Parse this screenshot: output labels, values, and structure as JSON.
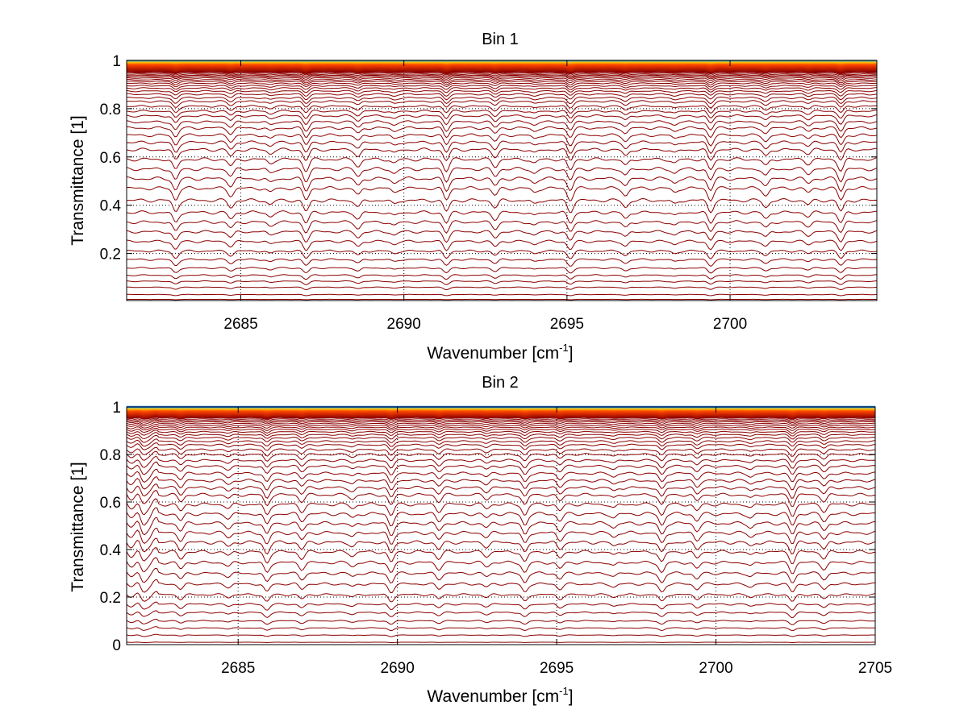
{
  "chart_data": [
    {
      "type": "line",
      "title": "Bin 1",
      "xlabel_main": "Wavenumber [cm",
      "xlabel_sup": "-1",
      "xlabel_end": "]",
      "ylabel": "Transmittance [1]",
      "xlim": [
        2681.5,
        2704.5
      ],
      "ylim": [
        0.005,
        1.0
      ],
      "xticks": [
        2685,
        2690,
        2695,
        2700
      ],
      "xtick_labels": [
        "2685",
        "2690",
        "2695",
        "2700"
      ],
      "yticks": [
        0.2,
        0.4,
        0.6,
        0.8,
        1
      ],
      "ytick_labels": [
        "0.2",
        "0.4",
        "0.6",
        "0.8",
        "1"
      ],
      "grid": true,
      "series_count": 60,
      "baseline_levels": [
        0.01,
        0.03,
        0.06,
        0.085,
        0.11,
        0.14,
        0.175,
        0.21,
        0.25,
        0.29,
        0.33,
        0.37,
        0.42,
        0.47,
        0.51,
        0.55,
        0.59,
        0.63,
        0.66,
        0.69,
        0.72,
        0.745,
        0.77,
        0.79,
        0.81,
        0.83,
        0.845,
        0.86,
        0.873,
        0.885,
        0.895,
        0.905,
        0.913,
        0.92,
        0.927,
        0.933,
        0.938,
        0.943,
        0.948,
        0.952,
        0.956,
        0.96,
        0.963,
        0.966,
        0.969,
        0.972,
        0.975,
        0.977,
        0.979,
        0.981,
        0.983,
        0.985,
        0.987,
        0.989,
        0.991,
        0.993,
        0.995,
        0.997,
        0.998,
        0.999
      ],
      "absorption_lines_cm1": [
        2683.0,
        2684.7,
        2685.9,
        2687.0,
        2688.6,
        2689.7,
        2691.3,
        2692.8,
        2694.0,
        2695.1,
        2696.8,
        2698.3,
        2699.4,
        2701.1,
        2702.4,
        2703.4
      ],
      "colors": {
        "low": "#8b0000",
        "mid": "#ff4500",
        "high": "#ffd700",
        "top": "#1e90ff"
      }
    },
    {
      "type": "line",
      "title": "Bin 2",
      "xlabel_main": "Wavenumber [cm",
      "xlabel_sup": "-1",
      "xlabel_end": "]",
      "ylabel": "Transmittance [1]",
      "xlim": [
        2681.5,
        2705
      ],
      "ylim": [
        0,
        1.0
      ],
      "xticks": [
        2685,
        2690,
        2695,
        2700,
        2705
      ],
      "xtick_labels": [
        "2685",
        "2690",
        "2695",
        "2700",
        "2705"
      ],
      "yticks": [
        0,
        0.2,
        0.4,
        0.6,
        0.8,
        1
      ],
      "ytick_labels": [
        "0",
        "0.2",
        "0.4",
        "0.6",
        "0.8",
        "1"
      ],
      "grid": true,
      "series_count": 60,
      "baseline_levels": [
        0.01,
        0.04,
        0.07,
        0.1,
        0.135,
        0.17,
        0.21,
        0.255,
        0.3,
        0.345,
        0.39,
        0.43,
        0.47,
        0.51,
        0.55,
        0.59,
        0.63,
        0.66,
        0.69,
        0.72,
        0.75,
        0.775,
        0.8,
        0.82,
        0.84,
        0.855,
        0.87,
        0.883,
        0.895,
        0.905,
        0.914,
        0.922,
        0.93,
        0.937,
        0.943,
        0.949,
        0.954,
        0.958,
        0.962,
        0.966,
        0.969,
        0.972,
        0.975,
        0.978,
        0.98,
        0.982,
        0.984,
        0.986,
        0.988,
        0.99,
        0.992,
        0.993,
        0.994,
        0.995,
        0.996,
        0.997,
        0.998,
        0.999,
        0.999,
        1.0
      ],
      "absorption_lines_cm1": [
        2682.0,
        2683.2,
        2684.7,
        2685.9,
        2687.0,
        2688.6,
        2689.8,
        2691.3,
        2692.8,
        2694.0,
        2695.1,
        2696.8,
        2698.3,
        2699.4,
        2701.1,
        2702.4,
        2703.4
      ],
      "colors": {
        "low": "#8b0000",
        "mid": "#ff4500",
        "high": "#ffd700",
        "top": "#1e90ff"
      }
    }
  ]
}
